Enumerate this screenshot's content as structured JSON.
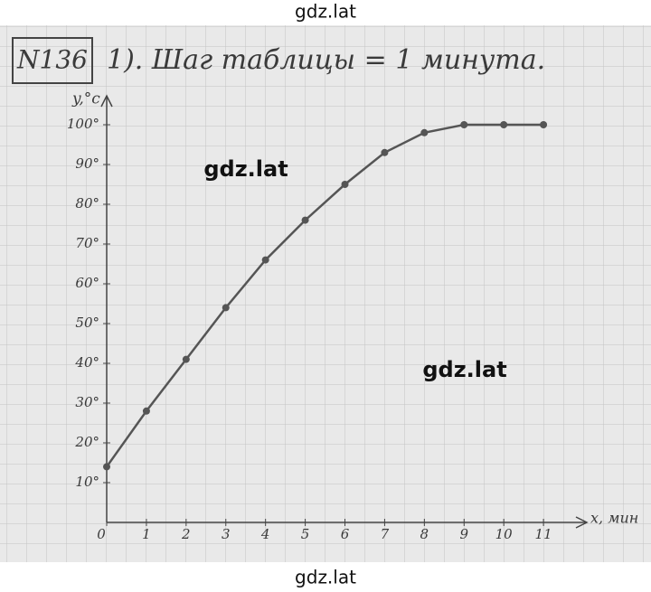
{
  "header": {
    "number": "N136",
    "text": "1). Шаг таблицы = 1 минута."
  },
  "watermarks": [
    "gdz.lat",
    "gdz.lat",
    "gdz.lat",
    "gdz.lat"
  ],
  "chart_data": {
    "type": "line",
    "x": [
      0,
      1,
      2,
      3,
      4,
      5,
      6,
      7,
      8,
      9,
      10,
      11
    ],
    "series": [
      {
        "color": "#555555",
        "values": [
          14,
          28,
          41,
          54,
          66,
          76,
          85,
          93,
          98,
          100,
          100,
          100
        ]
      }
    ],
    "xlim": [
      0,
      12
    ],
    "ylim": [
      0,
      105
    ],
    "xticks": [
      0,
      1,
      2,
      3,
      4,
      5,
      6,
      7,
      8,
      9,
      10,
      11
    ],
    "yticks": [
      {
        "value": 10,
        "label": "10°"
      },
      {
        "value": 20,
        "label": "20°"
      },
      {
        "value": 30,
        "label": "30°"
      },
      {
        "value": 40,
        "label": "40°"
      },
      {
        "value": 50,
        "label": "50°"
      },
      {
        "value": 60,
        "label": "60°"
      },
      {
        "value": 70,
        "label": "70°"
      },
      {
        "value": 80,
        "label": "80°"
      },
      {
        "value": 90,
        "label": "90°"
      },
      {
        "value": 100,
        "label": "100°"
      }
    ],
    "x_label": "x, мин",
    "y_label": "y,°c"
  }
}
